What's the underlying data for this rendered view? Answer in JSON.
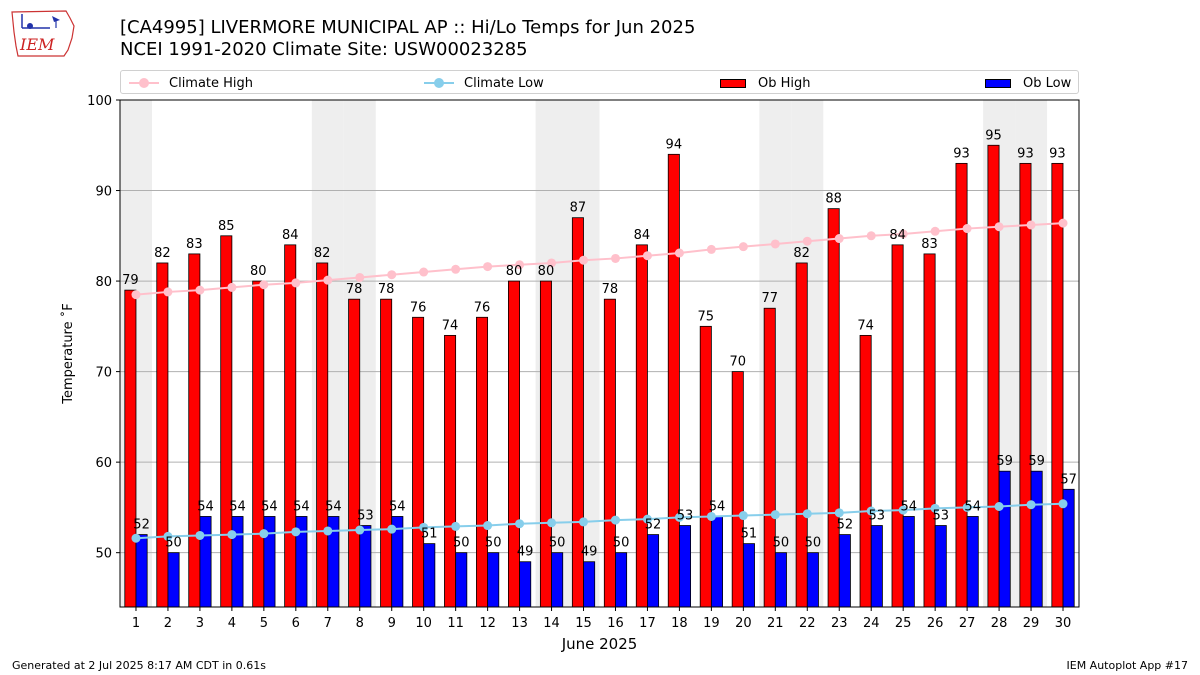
{
  "header": {
    "title_line1": "[CA4995] LIVERMORE MUNICIPAL AP :: Hi/Lo Temps for Jun 2025",
    "title_line2": "NCEI 1991-2020 Climate Site: USW00023285",
    "logo_text": "IEM"
  },
  "footer": {
    "generated": "Generated at 2 Jul 2025 8:17 AM CDT in 0.61s",
    "app": "IEM Autoplot App #17"
  },
  "colors": {
    "ob_high": "#ff0000",
    "ob_low": "#0000ff",
    "climate_high": "#ffc0cb",
    "climate_low": "#87ceeb",
    "weekend_band": "#eeeeee"
  },
  "chart_data": {
    "type": "bar",
    "xlabel": "June 2025",
    "ylabel": "Temperature ˚F",
    "ylim": [
      44,
      100
    ],
    "yticks": [
      50,
      60,
      70,
      80,
      90,
      100
    ],
    "grid": "horizontal",
    "legend_position": "top",
    "categories": [
      "1",
      "2",
      "3",
      "4",
      "5",
      "6",
      "7",
      "8",
      "9",
      "10",
      "11",
      "12",
      "13",
      "14",
      "15",
      "16",
      "17",
      "18",
      "19",
      "20",
      "21",
      "22",
      "23",
      "24",
      "25",
      "26",
      "27",
      "28",
      "29",
      "30"
    ],
    "shaded_days": [
      1,
      7,
      8,
      14,
      15,
      21,
      22,
      28,
      29
    ],
    "series": [
      {
        "name": "Ob High",
        "kind": "bar",
        "color": "#ff0000",
        "values": [
          79,
          82,
          83,
          85,
          80,
          84,
          82,
          78,
          78,
          76,
          74,
          76,
          80,
          80,
          87,
          78,
          84,
          94,
          75,
          70,
          77,
          82,
          88,
          74,
          84,
          83,
          93,
          95,
          93,
          93
        ]
      },
      {
        "name": "Ob Low",
        "kind": "bar",
        "color": "#0000ff",
        "values": [
          52,
          50,
          54,
          54,
          54,
          54,
          54,
          53,
          54,
          51,
          50,
          50,
          49,
          50,
          49,
          50,
          52,
          53,
          54,
          51,
          50,
          50,
          52,
          53,
          54,
          53,
          54,
          59,
          59,
          57
        ]
      },
      {
        "name": "Climate High",
        "kind": "line",
        "color": "#ffc0cb",
        "values": [
          78.5,
          78.8,
          79.0,
          79.3,
          79.6,
          79.8,
          80.1,
          80.4,
          80.7,
          81.0,
          81.3,
          81.6,
          81.8,
          82.0,
          82.3,
          82.5,
          82.8,
          83.1,
          83.5,
          83.8,
          84.1,
          84.4,
          84.7,
          85.0,
          85.2,
          85.5,
          85.8,
          86.0,
          86.2,
          86.4
        ]
      },
      {
        "name": "Climate Low",
        "kind": "line",
        "color": "#87ceeb",
        "values": [
          51.6,
          51.8,
          51.9,
          52.0,
          52.1,
          52.3,
          52.4,
          52.5,
          52.6,
          52.8,
          52.9,
          53.0,
          53.2,
          53.3,
          53.4,
          53.6,
          53.7,
          53.9,
          54.0,
          54.1,
          54.2,
          54.3,
          54.4,
          54.6,
          54.7,
          54.9,
          55.0,
          55.1,
          55.3,
          55.4
        ]
      }
    ]
  }
}
